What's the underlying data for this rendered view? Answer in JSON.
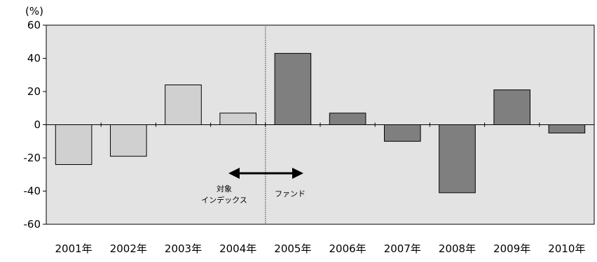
{
  "chart_data": {
    "type": "bar",
    "title": "",
    "xlabel": "",
    "ylabel": "(%)",
    "ylim": [
      -60,
      60
    ],
    "yticks": [
      -60,
      -40,
      -20,
      0,
      20,
      40,
      60
    ],
    "grid": false,
    "legend": "none",
    "categories": [
      "2001年",
      "2002年",
      "2003年",
      "2004年",
      "2005年",
      "2006年",
      "2007年",
      "2008年",
      "2009年",
      "2010年"
    ],
    "values": [
      -24,
      -19,
      24,
      7,
      43,
      7,
      -10,
      -41,
      21,
      -5
    ],
    "bar_groups": [
      "index",
      "index",
      "index",
      "index",
      "fund",
      "fund",
      "fund",
      "fund",
      "fund",
      "fund"
    ],
    "colors": {
      "plot_background": "#e3e3e3",
      "index_bar": "#d0d0d0",
      "fund_bar": "#7f7f7f",
      "bar_stroke": "#000000",
      "divider": "#6e6e6e"
    },
    "annotation": {
      "left_label_line1": "対象",
      "left_label_line2": "インデックス",
      "right_label": "ファンド"
    }
  }
}
